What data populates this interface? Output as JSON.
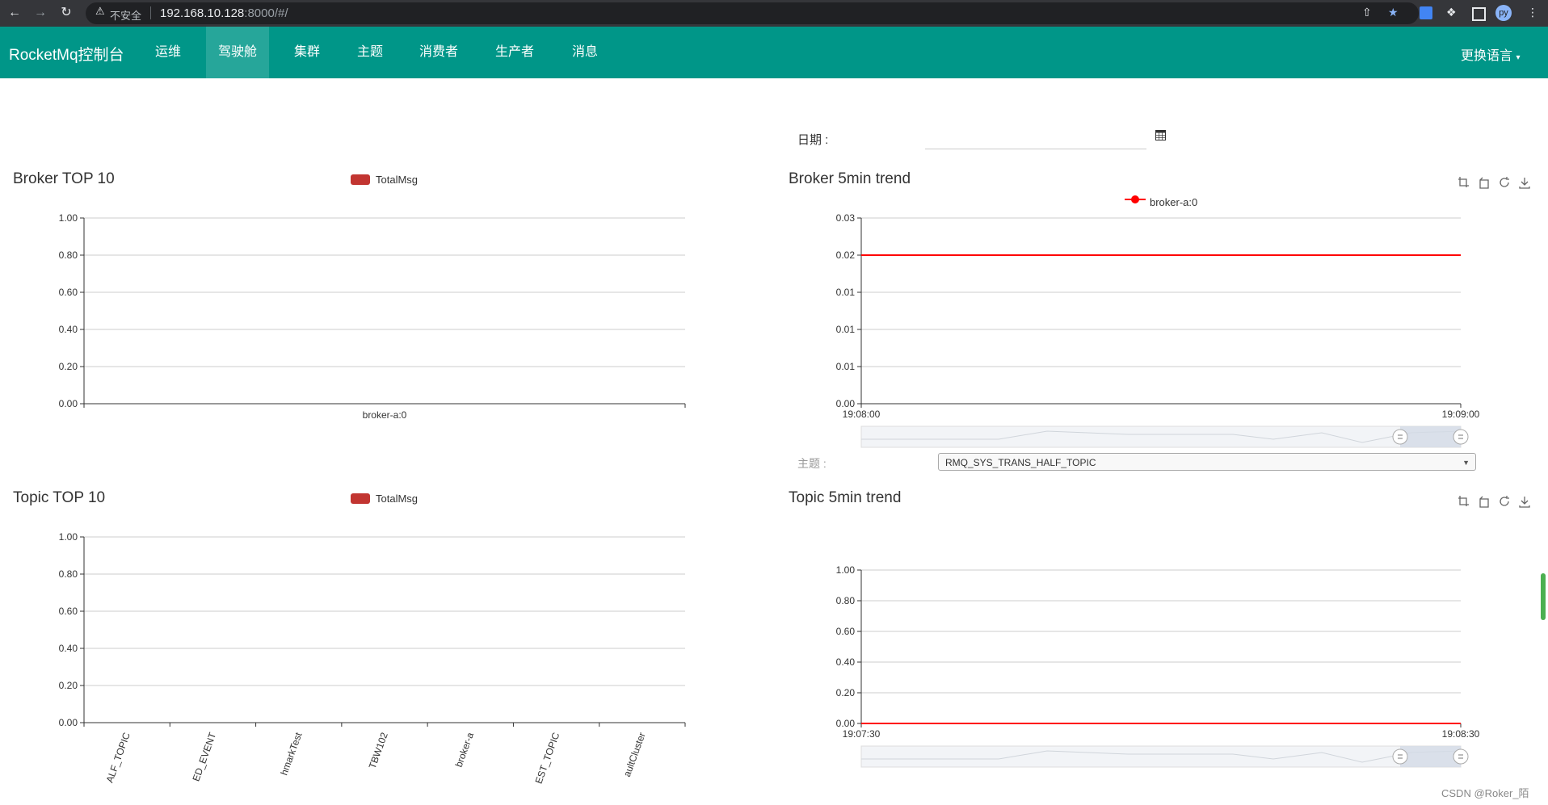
{
  "browser": {
    "insecure_label": "不安全",
    "url_host": "192.168.10.128",
    "url_rest": ":8000/#/",
    "profile_initials": "py"
  },
  "navbar": {
    "brand": "RocketMq控制台",
    "items": [
      {
        "label": "运维"
      },
      {
        "label": "驾驶舱",
        "active": true
      },
      {
        "label": "集群"
      },
      {
        "label": "主题"
      },
      {
        "label": "消费者"
      },
      {
        "label": "生产者"
      },
      {
        "label": "消息"
      }
    ],
    "language": "更换语言"
  },
  "date_filter": {
    "label": "日期 :",
    "value": ""
  },
  "topic_filter": {
    "label": "主题 :",
    "selected": "RMQ_SYS_TRANS_HALF_TOPIC"
  },
  "watermark": "CSDN @Roker_陌",
  "colors": {
    "navbar": "#009688",
    "bar": "#c23531",
    "line": "#ff0000"
  },
  "chart_data": [
    {
      "id": "broker_top10",
      "type": "bar",
      "title": "Broker TOP 10",
      "legend": [
        "TotalMsg"
      ],
      "categories": [
        "broker-a:0"
      ],
      "series": [
        {
          "name": "TotalMsg",
          "values": [
            0
          ]
        }
      ],
      "y_ticks": [
        "0.00",
        "0.20",
        "0.40",
        "0.60",
        "0.80",
        "1.00"
      ],
      "ylim": [
        0,
        1
      ]
    },
    {
      "id": "broker_trend",
      "type": "line",
      "title": "Broker 5min trend",
      "legend": [
        "broker-a:0"
      ],
      "x": [
        "19:08:00",
        "19:09:00"
      ],
      "series": [
        {
          "name": "broker-a:0",
          "values": [
            0.024,
            0.024
          ]
        }
      ],
      "y_ticks": [
        "0.00",
        "0.01",
        "0.01",
        "0.01",
        "0.02",
        "0.03"
      ],
      "ylim": [
        0,
        0.03
      ]
    },
    {
      "id": "topic_top10",
      "type": "bar",
      "title": "Topic TOP 10",
      "legend": [
        "TotalMsg"
      ],
      "categories": [
        "ALF_TOPIC",
        "ED_EVENT",
        "hmarkTest",
        "TBW102",
        "broker-a",
        "EST_TOPIC",
        "aultCluster"
      ],
      "series": [
        {
          "name": "TotalMsg",
          "values": [
            0,
            0,
            0,
            0,
            0,
            0,
            0
          ]
        }
      ],
      "y_ticks": [
        "0.00",
        "0.20",
        "0.40",
        "0.60",
        "0.80",
        "1.00"
      ],
      "ylim": [
        0,
        1
      ]
    },
    {
      "id": "topic_trend",
      "type": "line",
      "title": "Topic 5min trend",
      "x": [
        "19:07:30",
        "19:08:30"
      ],
      "series": [
        {
          "values": [
            0,
            0
          ]
        }
      ],
      "y_ticks": [
        "0.00",
        "0.20",
        "0.40",
        "0.60",
        "0.80",
        "1.00"
      ],
      "ylim": [
        0,
        1
      ]
    }
  ]
}
